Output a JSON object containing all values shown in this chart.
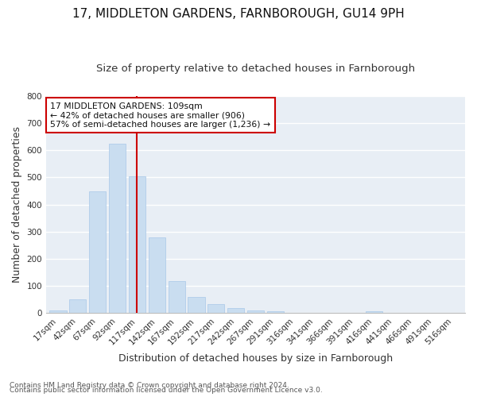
{
  "title": "17, MIDDLETON GARDENS, FARNBOROUGH, GU14 9PH",
  "subtitle": "Size of property relative to detached houses in Farnborough",
  "xlabel": "Distribution of detached houses by size in Farnborough",
  "ylabel": "Number of detached properties",
  "footnote1": "Contains HM Land Registry data © Crown copyright and database right 2024.",
  "footnote2": "Contains public sector information licensed under the Open Government Licence v3.0.",
  "categories": [
    "17sqm",
    "42sqm",
    "67sqm",
    "92sqm",
    "117sqm",
    "142sqm",
    "167sqm",
    "192sqm",
    "217sqm",
    "242sqm",
    "267sqm",
    "291sqm",
    "316sqm",
    "341sqm",
    "366sqm",
    "391sqm",
    "416sqm",
    "441sqm",
    "466sqm",
    "491sqm",
    "516sqm"
  ],
  "bar_values": [
    10,
    50,
    447,
    623,
    503,
    280,
    117,
    59,
    34,
    20,
    9,
    8,
    0,
    0,
    0,
    0,
    8,
    0,
    0,
    0,
    0
  ],
  "bar_color": "#c9ddf0",
  "bar_edge_color": "#a8c8e8",
  "vline_x": 4,
  "vline_color": "#cc0000",
  "annotation_text": "17 MIDDLETON GARDENS: 109sqm\n← 42% of detached houses are smaller (906)\n57% of semi-detached houses are larger (1,236) →",
  "annotation_box_color": "#ffffff",
  "annotation_box_edge": "#cc0000",
  "ylim": [
    0,
    800
  ],
  "yticks": [
    0,
    100,
    200,
    300,
    400,
    500,
    600,
    700,
    800
  ],
  "fig_bg_color": "#ffffff",
  "plot_bg_color": "#e8eef5",
  "grid_color": "#ffffff",
  "title_fontsize": 11,
  "subtitle_fontsize": 9.5,
  "label_fontsize": 9,
  "tick_fontsize": 7.5,
  "footnote_fontsize": 6.5
}
